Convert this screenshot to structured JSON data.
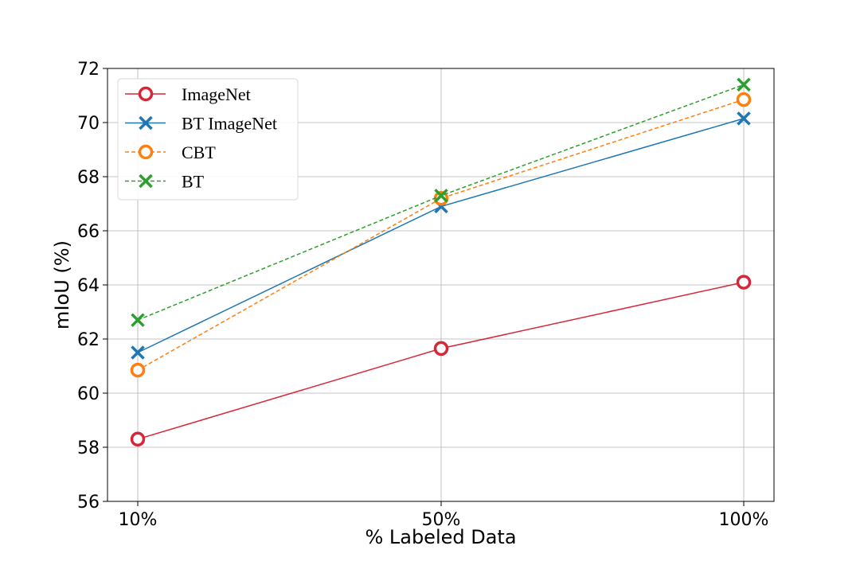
{
  "chart_data": {
    "type": "line",
    "categories": [
      "10%",
      "50%",
      "100%"
    ],
    "xlabel": "% Labeled Data",
    "ylabel": "mIoU (%)",
    "ylim": [
      56,
      72
    ],
    "yticks": [
      56,
      58,
      60,
      62,
      64,
      66,
      68,
      70,
      72
    ],
    "grid": true,
    "legend_position": "top-left",
    "series": [
      {
        "name": "ImageNet",
        "values": [
          58.3,
          61.65,
          64.1
        ],
        "color": "#d62738",
        "marker": "circle",
        "linestyle": "solid"
      },
      {
        "name": "BT ImageNet",
        "values": [
          61.5,
          66.9,
          70.15
        ],
        "color": "#1f77b4",
        "marker": "x",
        "linestyle": "solid"
      },
      {
        "name": "CBT",
        "values": [
          60.85,
          67.2,
          70.85
        ],
        "color": "#ff7f0e",
        "marker": "circle",
        "linestyle": "dashed"
      },
      {
        "name": "BT",
        "values": [
          62.7,
          67.3,
          71.4
        ],
        "color": "#2ca02c",
        "marker": "x",
        "linestyle": "dashed"
      }
    ]
  }
}
